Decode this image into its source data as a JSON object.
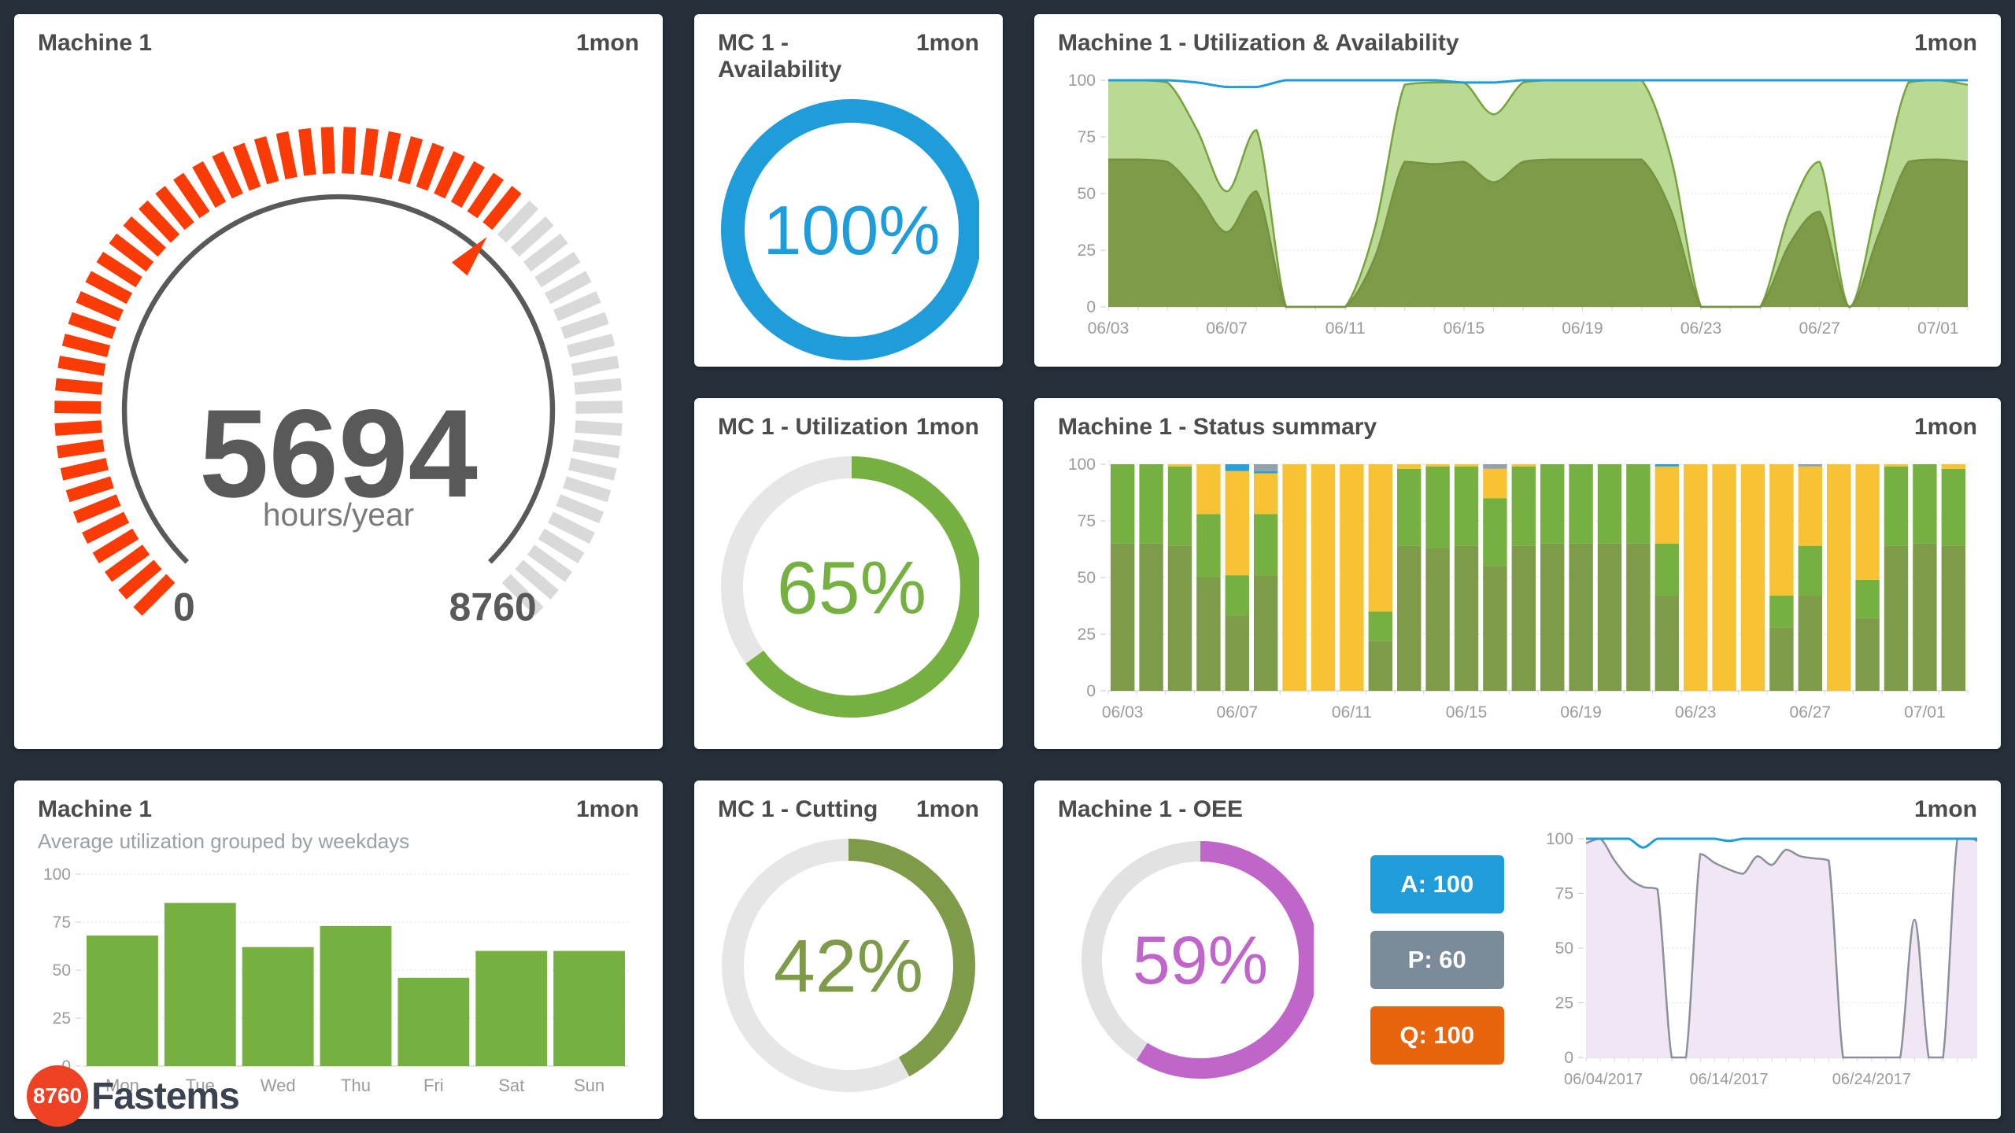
{
  "page": {
    "background": "#242f3a",
    "panel_background": "#ffffff",
    "title_color": "#4c4c4c"
  },
  "panels": {
    "gauge": {
      "title": "Machine 1",
      "period": "1mon"
    },
    "availability_donut": {
      "title": "MC 1 - Availability",
      "period": "1mon"
    },
    "util_avail_chart": {
      "title": "Machine 1 - Utilization & Availability",
      "period": "1mon"
    },
    "utilization_donut": {
      "title": "MC 1 - Utilization",
      "period": "1mon"
    },
    "status_summary": {
      "title": "Machine 1 - Status summary",
      "period": "1mon"
    },
    "weekday_chart": {
      "title": "Machine 1",
      "subtitle": "Average utilization grouped by weekdays",
      "period": "1mon"
    },
    "cutting_donut": {
      "title": "MC 1 - Cutting",
      "period": "1mon"
    },
    "oee": {
      "title": "Machine 1 - OEE",
      "period": "1mon",
      "badges": [
        {
          "label": "A: 100",
          "color": "#1f9ddb"
        },
        {
          "label": "P: 60",
          "color": "#7a8c9a"
        },
        {
          "label": "Q: 100",
          "color": "#e8650d"
        }
      ]
    }
  },
  "logo": {
    "badge": "8760",
    "text": "Fastems"
  },
  "chart_data": [
    {
      "type": "gauge",
      "title": "Machine 1 hours per year",
      "value": 5694,
      "min": 0,
      "max": 8760,
      "percent": 0.65,
      "value_text": "5694",
      "unit": "hours/year",
      "min_label": "0",
      "max_label": "8760",
      "tick_count": 60,
      "sweep_deg": 270,
      "filled_color": "#fb3b05",
      "empty_color": "#d9d9d9",
      "arc_color": "#595959",
      "text_color": "#595959",
      "unit_color": "#7a7a7a",
      "needle_color": "#fb3b05"
    },
    {
      "type": "donut",
      "title": "MC 1 - Availability",
      "value": 100,
      "label": "100%",
      "color": "#1f9ddb",
      "track": "#e6e6e6",
      "thickness": 30,
      "font": 88
    },
    {
      "type": "area",
      "title": "Machine 1 - Utilization & Availability",
      "n": 30,
      "ylim": [
        0,
        100
      ],
      "yticks": [
        0,
        25,
        50,
        75,
        100
      ],
      "grid": true,
      "legend": "none",
      "x": [
        "06/03",
        "06/04",
        "06/05",
        "06/06",
        "06/07",
        "06/08",
        "06/09",
        "06/10",
        "06/11",
        "06/12",
        "06/13",
        "06/14",
        "06/15",
        "06/16",
        "06/17",
        "06/18",
        "06/19",
        "06/20",
        "06/21",
        "06/22",
        "06/23",
        "06/24",
        "06/25",
        "06/26",
        "06/27",
        "06/28",
        "06/29",
        "06/30",
        "07/01",
        "07/02"
      ],
      "x_ticks": [
        {
          "pos": 0,
          "label": "06/03"
        },
        {
          "pos": 4,
          "label": "06/07"
        },
        {
          "pos": 8,
          "label": "06/11"
        },
        {
          "pos": 12,
          "label": "06/15"
        },
        {
          "pos": 16,
          "label": "06/19"
        },
        {
          "pos": 20,
          "label": "06/23"
        },
        {
          "pos": 24,
          "label": "06/27"
        },
        {
          "pos": 28,
          "label": "07/01"
        }
      ],
      "series": [
        {
          "name": "availability-area",
          "kind": "area",
          "fill": "#bada94",
          "line": "#76a33c",
          "values": [
            100,
            100,
            99,
            78,
            51,
            78,
            0,
            0,
            0,
            35,
            98,
            99,
            99,
            85,
            99,
            100,
            100,
            100,
            100,
            65,
            0,
            0,
            0,
            42,
            64,
            0,
            49,
            99,
            100,
            98
          ]
        },
        {
          "name": "utilization-area",
          "kind": "area",
          "fill": "#7d9b49",
          "line": "#74923f",
          "values": [
            65,
            65,
            64,
            50,
            33,
            51,
            0,
            0,
            0,
            22,
            64,
            63,
            64,
            55,
            64,
            65,
            65,
            65,
            65,
            42,
            0,
            0,
            0,
            28,
            42,
            0,
            32,
            64,
            65,
            64
          ]
        },
        {
          "name": "availability-line",
          "kind": "line",
          "line": "#1f9ddb",
          "width": 3,
          "values": [
            100,
            100,
            100,
            99,
            97,
            97,
            100,
            100,
            100,
            100,
            100,
            100,
            99,
            99,
            100,
            100,
            100,
            100,
            100,
            100,
            100,
            100,
            100,
            100,
            100,
            100,
            100,
            100,
            100,
            100
          ]
        }
      ]
    },
    {
      "type": "donut",
      "title": "MC 1 - Utilization",
      "value": 65,
      "label": "65%",
      "color": "#76b041",
      "track": "#e6e6e6",
      "thickness": 28,
      "font": 95
    },
    {
      "type": "stacked_bar",
      "title": "Machine 1 - Status summary",
      "n": 30,
      "ylim": [
        0,
        100
      ],
      "yticks": [
        0,
        25,
        50,
        75,
        100
      ],
      "categories": [
        "06/03",
        "06/04",
        "06/05",
        "06/06",
        "06/07",
        "06/08",
        "06/09",
        "06/10",
        "06/11",
        "06/12",
        "06/13",
        "06/14",
        "06/15",
        "06/16",
        "06/17",
        "06/18",
        "06/19",
        "06/20",
        "06/21",
        "06/22",
        "06/23",
        "06/24",
        "06/25",
        "06/26",
        "06/27",
        "06/28",
        "06/29",
        "06/30",
        "07/01",
        "07/02"
      ],
      "x_ticks": [
        {
          "pos": 0,
          "label": "06/03"
        },
        {
          "pos": 4,
          "label": "06/07"
        },
        {
          "pos": 8,
          "label": "06/11"
        },
        {
          "pos": 12,
          "label": "06/15"
        },
        {
          "pos": 16,
          "label": "06/19"
        },
        {
          "pos": 20,
          "label": "06/23"
        },
        {
          "pos": 24,
          "label": "06/27"
        },
        {
          "pos": 28,
          "label": "07/01"
        }
      ],
      "series": [
        {
          "name": "dark-green",
          "color": "#7d9b49",
          "values": [
            65,
            65,
            64,
            50,
            33,
            51,
            0,
            0,
            0,
            22,
            64,
            63,
            64,
            55,
            64,
            65,
            65,
            65,
            65,
            42,
            0,
            0,
            0,
            28,
            42,
            0,
            32,
            64,
            65,
            64
          ]
        },
        {
          "name": "green",
          "color": "#76b041",
          "values": [
            35,
            35,
            35,
            28,
            18,
            27,
            0,
            0,
            0,
            13,
            34,
            36,
            35,
            30,
            35,
            35,
            35,
            35,
            35,
            23,
            0,
            0,
            0,
            14,
            22,
            0,
            17,
            35,
            35,
            34
          ]
        },
        {
          "name": "yellow",
          "color": "#f7c234",
          "values": [
            0,
            0,
            1,
            22,
            46,
            18,
            100,
            100,
            100,
            65,
            2,
            1,
            1,
            13,
            1,
            0,
            0,
            0,
            0,
            34,
            100,
            100,
            100,
            58,
            35,
            100,
            51,
            1,
            0,
            2
          ]
        },
        {
          "name": "blue",
          "color": "#2b9fd8",
          "values": [
            0,
            0,
            0,
            0,
            3,
            1,
            0,
            0,
            0,
            0,
            0,
            0,
            0,
            0,
            0,
            0,
            0,
            0,
            0,
            1,
            0,
            0,
            0,
            0,
            0,
            0,
            0,
            0,
            0,
            0
          ]
        },
        {
          "name": "gray",
          "color": "#93a1ac",
          "values": [
            0,
            0,
            0,
            0,
            0,
            3,
            0,
            0,
            0,
            0,
            0,
            0,
            0,
            2,
            0,
            0,
            0,
            0,
            0,
            0,
            0,
            0,
            0,
            0,
            1,
            0,
            0,
            0,
            0,
            0
          ]
        }
      ]
    },
    {
      "type": "bar",
      "title": "Average utilization grouped by weekdays",
      "categories": [
        "Mon",
        "Tue",
        "Wed",
        "Thu",
        "Fri",
        "Sat",
        "Sun"
      ],
      "values": [
        68,
        85,
        62,
        73,
        46,
        60,
        60
      ],
      "color": "#76b041",
      "yticks": [
        0,
        25,
        50,
        75,
        100
      ],
      "ylim": [
        0,
        100
      ]
    },
    {
      "type": "donut",
      "title": "MC 1 - Cutting",
      "value": 42,
      "label": "42%",
      "color": "#7d9b49",
      "track": "#e6e6e6",
      "thickness": 28,
      "font": 95
    },
    {
      "type": "donut",
      "title": "Machine 1 - OEE",
      "value": 59,
      "label": "59%",
      "color": "#c065ca",
      "track": "#e2e2e2",
      "thickness": 26,
      "font": 86
    },
    {
      "type": "area",
      "title": "Machine 1 - OEE trend",
      "n": 29,
      "ylim": [
        0,
        100
      ],
      "yticks": [
        0,
        25,
        50,
        75,
        100
      ],
      "ml": 52,
      "xfont": 20,
      "x_ticks": [
        {
          "pos": 0,
          "label": "06/04/2017"
        },
        {
          "pos": 10,
          "label": "06/14/2017"
        },
        {
          "pos": 20,
          "label": "06/24/2017"
        }
      ],
      "series": [
        {
          "name": "oee-area",
          "kind": "area",
          "fill": "#f1e6f4",
          "line": "#8b919b",
          "values": [
            98,
            100,
            90,
            82,
            78,
            77,
            0,
            0,
            93,
            89,
            86,
            84,
            92,
            88,
            95,
            92,
            91,
            90,
            0,
            0,
            0,
            0,
            0,
            63,
            0,
            0,
            100,
            100,
            97
          ]
        },
        {
          "name": "availability-line",
          "kind": "line",
          "line": "#1f9ddb",
          "width": 3,
          "values": [
            100,
            100,
            100,
            100,
            96,
            100,
            100,
            100,
            100,
            100,
            99,
            100,
            100,
            100,
            100,
            100,
            100,
            100,
            100,
            100,
            100,
            100,
            100,
            100,
            100,
            100,
            100,
            100,
            100
          ]
        }
      ]
    }
  ]
}
